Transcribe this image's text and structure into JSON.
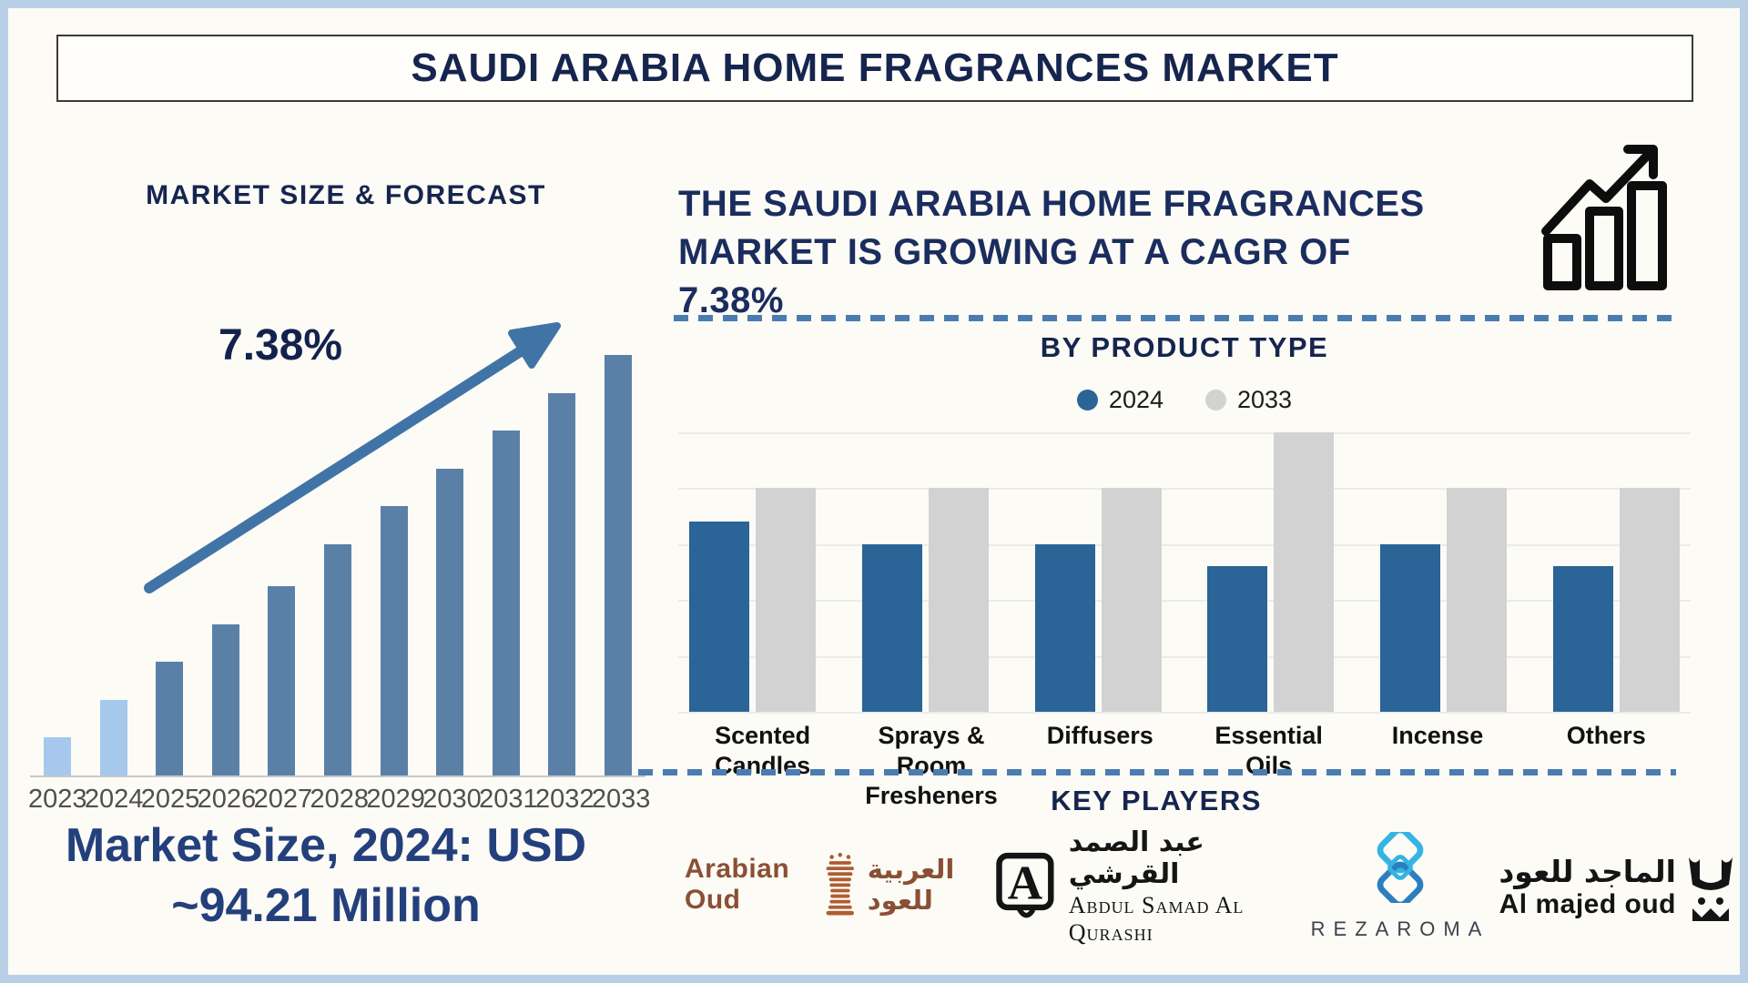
{
  "title": "SAUDI ARABIA HOME FRAGRANCES MARKET",
  "colors": {
    "navy": "#16254e",
    "frame_border": "#b9cfe6",
    "forecast_bar": "#5b80a8",
    "forecast_bar_highlight": "#a5c8ec",
    "arrow": "#4174a6",
    "dashed_line": "#4a7cb0",
    "product_2024": "#2b6496",
    "product_2033": "#d2d2d2",
    "arabian_oud_brown": "#8a4f35",
    "rezaroma_cyan": "#35b4e4",
    "rezaroma_blue": "#2a7fc0"
  },
  "left_panel": {
    "heading": "MARKET SIZE & FORECAST",
    "cagr_label": "7.38%",
    "market_size_line1": "Market Size, 2024: USD",
    "market_size_line2": "~94.21 Million"
  },
  "right_panel": {
    "cagr_lines": [
      "THE SAUDI ARABIA HOME FRAGRANCES",
      "MARKET IS GROWING AT A CAGR OF",
      "7.38%"
    ],
    "product_section_title": "BY PRODUCT TYPE",
    "key_players_title": "KEY PLAYERS",
    "key_players": {
      "arabian_oud": {
        "latin": "Arabian Oud",
        "arabic": "العربية للعود"
      },
      "abdul_samad_al_qurashi": {
        "arabic": "عبد الصمد القرشي",
        "latin": "Abdul Samad Al Qurashi"
      },
      "rezaroma": {
        "latin": "REZAROMA"
      },
      "al_majed_oud": {
        "arabic": "الماجد للعود",
        "latin": "Al majed oud"
      }
    }
  },
  "chart_data": [
    {
      "id": "market_size_forecast",
      "type": "bar",
      "title": "MARKET SIZE & FORECAST",
      "categories": [
        "2023",
        "2024",
        "2025",
        "2026",
        "2027",
        "2028",
        "2029",
        "2030",
        "2031",
        "2032",
        "2033"
      ],
      "values_relative_pct": [
        9,
        18,
        27,
        36,
        45,
        55,
        64,
        73,
        82,
        91,
        100
      ],
      "highlight_years": [
        "2023",
        "2024"
      ],
      "bar_color": "#5b80a8",
      "highlight_color": "#a5c8ec",
      "annotation": "7.38%",
      "note": "Market Size, 2024: USD ~94.21 Million",
      "xlabel": "",
      "ylabel": "",
      "grid": false,
      "y_axis_labels": false
    },
    {
      "id": "by_product_type",
      "type": "grouped_bar",
      "title": "BY PRODUCT TYPE",
      "categories": [
        "Scented\nCandles",
        "Sprays & Room\nFresheners",
        "Diffusers",
        "Essential\nOils",
        "Incense",
        "Others"
      ],
      "series": [
        {
          "name": "2024",
          "color": "#2b6496",
          "values": [
            68,
            60,
            60,
            52,
            60,
            52
          ]
        },
        {
          "name": "2033",
          "color": "#d2d2d2",
          "values": [
            80,
            80,
            80,
            100,
            80,
            80
          ]
        }
      ],
      "ylim": [
        0,
        100
      ],
      "gridline_count": 6,
      "grid": true,
      "legend_position": "top",
      "y_axis_labels": false
    }
  ]
}
